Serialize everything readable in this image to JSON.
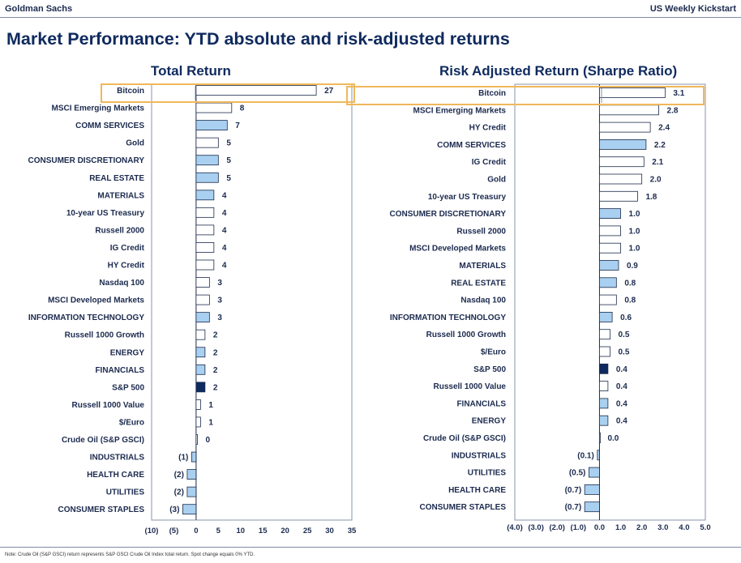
{
  "header": {
    "left": "Goldman Sachs",
    "right": "US Weekly Kickstart"
  },
  "title": "Market Performance: YTD absolute and risk-adjusted returns",
  "note": "Note: Crude Oil (S&P GSCI) return represents S&P GSCI Crude Oil Index total return. Spot change equals 0% YTD.",
  "colors": {
    "outline": "#1c2b4a",
    "light": "#a9d0f0",
    "dark": "#0f2a5e",
    "none": "#ffffff",
    "highlight": "#f0b85a"
  },
  "chart_data": [
    {
      "type": "bar",
      "orientation": "horizontal",
      "title": "Total Return",
      "xlim": [
        -10,
        35
      ],
      "xticks": [
        -10,
        -5,
        0,
        5,
        10,
        15,
        20,
        25,
        30,
        35
      ],
      "xtick_labels": [
        "(10)",
        "(5)",
        "0",
        "5",
        "10",
        "15",
        "20",
        "25",
        "30",
        "35"
      ],
      "highlight_category": "Bitcoin",
      "categories": [
        "Bitcoin",
        "MSCI Emerging Markets",
        "COMM SERVICES",
        "Gold",
        "CONSUMER DISCRETIONARY",
        "REAL ESTATE",
        "MATERIALS",
        "10-year US Treasury",
        "Russell 2000",
        "IG Credit",
        "HY Credit",
        "Nasdaq 100",
        "MSCI Developed Markets",
        "INFORMATION TECHNOLOGY",
        "Russell 1000 Growth",
        "ENERGY",
        "FINANCIALS",
        "S&P 500",
        "Russell 1000 Value",
        "$/Euro",
        "Crude Oil (S&P GSCI)",
        "INDUSTRIALS",
        "HEALTH CARE",
        "UTILITIES",
        "CONSUMER STAPLES"
      ],
      "values": [
        27,
        8,
        7,
        5,
        5,
        5,
        4,
        4,
        4,
        4,
        4,
        3,
        3,
        3,
        2,
        2,
        2,
        2,
        1,
        1,
        0.3,
        -1,
        -2,
        -2,
        -3
      ],
      "value_labels": [
        "27",
        "8",
        "7",
        "5",
        "5",
        "5",
        "4",
        "4",
        "4",
        "4",
        "4",
        "3",
        "3",
        "3",
        "2",
        "2",
        "2",
        "2",
        "1",
        "1",
        "0",
        "(1)",
        "(2)",
        "(2)",
        "(3)"
      ],
      "fills": [
        "none",
        "none",
        "light",
        "none",
        "light",
        "light",
        "light",
        "none",
        "none",
        "none",
        "none",
        "none",
        "none",
        "light",
        "none",
        "light",
        "light",
        "dark",
        "none",
        "none",
        "none",
        "light",
        "light",
        "light",
        "light"
      ]
    },
    {
      "type": "bar",
      "orientation": "horizontal",
      "title": "Risk Adjusted Return (Sharpe Ratio)",
      "xlim": [
        -4,
        5
      ],
      "xticks": [
        -4,
        -3,
        -2,
        -1,
        0,
        1,
        2,
        3,
        4,
        5
      ],
      "xtick_labels": [
        "(4.0)",
        "(3.0)",
        "(2.0)",
        "(1.0)",
        "0.0",
        "1.0",
        "2.0",
        "3.0",
        "4.0",
        "5.0"
      ],
      "highlight_category": "Bitcoin",
      "categories": [
        "Bitcoin",
        "MSCI Emerging Markets",
        "HY Credit",
        "COMM SERVICES",
        "IG Credit",
        "Gold",
        "10-year US Treasury",
        "CONSUMER DISCRETIONARY",
        "Russell 2000",
        "MSCI Developed Markets",
        "MATERIALS",
        "REAL ESTATE",
        "Nasdaq 100",
        "INFORMATION TECHNOLOGY",
        "Russell 1000 Growth",
        "$/Euro",
        "S&P 500",
        "Russell 1000 Value",
        "FINANCIALS",
        "ENERGY",
        "Crude Oil (S&P GSCI)",
        "INDUSTRIALS",
        "UTILITIES",
        "HEALTH CARE",
        "CONSUMER STAPLES"
      ],
      "values": [
        3.1,
        2.8,
        2.4,
        2.2,
        2.1,
        2.0,
        1.8,
        1.0,
        1.0,
        1.0,
        0.9,
        0.8,
        0.8,
        0.6,
        0.5,
        0.5,
        0.4,
        0.4,
        0.4,
        0.4,
        0.0,
        -0.1,
        -0.5,
        -0.7,
        -0.7
      ],
      "value_labels": [
        "3.1",
        "2.8",
        "2.4",
        "2.2",
        "2.1",
        "2.0",
        "1.8",
        "1.0",
        "1.0",
        "1.0",
        "0.9",
        "0.8",
        "0.8",
        "0.6",
        "0.5",
        "0.5",
        "0.4",
        "0.4",
        "0.4",
        "0.4",
        "0.0",
        "(0.1)",
        "(0.5)",
        "(0.7)",
        "(0.7)"
      ],
      "fills": [
        "none",
        "none",
        "none",
        "light",
        "none",
        "none",
        "none",
        "light",
        "none",
        "none",
        "light",
        "light",
        "none",
        "light",
        "none",
        "none",
        "dark",
        "none",
        "light",
        "light",
        "none",
        "light",
        "light",
        "light",
        "light"
      ]
    }
  ]
}
